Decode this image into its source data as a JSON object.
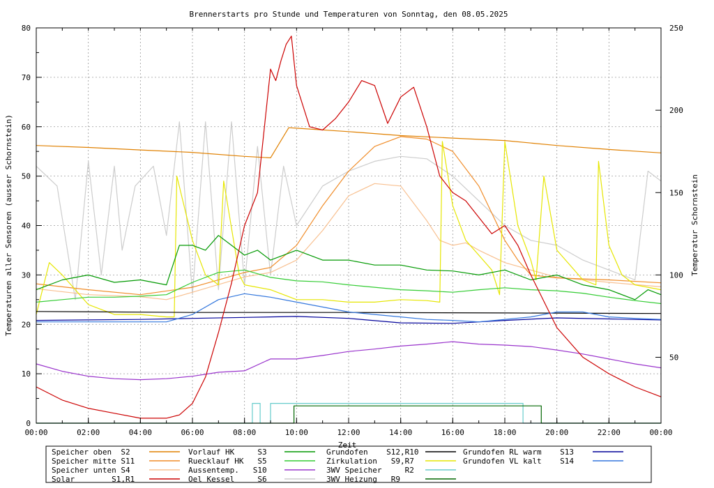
{
  "chart_data": {
    "type": "line",
    "title": "Brennerstarts pro Stunde und Temperaturen von Sonntag, den 08.05.2025",
    "xlabel": "Zeit",
    "ylabel": "Temperaturen aller Sensoren (ausser Schornstein)",
    "y2label": "Temperatur Schornstein",
    "y2label_color": "#ee44ee",
    "x_unit": "hours",
    "xlim": [
      0,
      24
    ],
    "ylim": [
      0,
      80
    ],
    "y2lim": [
      10,
      250
    ],
    "grid": true,
    "legend_position": "bottom",
    "x_ticks": [
      "00:00",
      "02:00",
      "04:00",
      "06:00",
      "08:00",
      "10:00",
      "12:00",
      "14:00",
      "16:00",
      "18:00",
      "20:00",
      "22:00",
      "00:00"
    ],
    "y_ticks": [
      "0",
      "10",
      "20",
      "30",
      "40",
      "50",
      "60",
      "70",
      "80"
    ],
    "y2_ticks": [
      "50",
      "100",
      "150",
      "200",
      "250"
    ],
    "series": [
      {
        "name": "Speicher oben  S2",
        "color": "#e08000",
        "axis": "y",
        "x": [
          0,
          2,
          4,
          6,
          8,
          9,
          9.7,
          10,
          12,
          14,
          16,
          18,
          20,
          22,
          24
        ],
        "values": [
          56.2,
          55.8,
          55.3,
          54.8,
          54.0,
          53.7,
          59.8,
          59.7,
          59.0,
          58.2,
          57.7,
          57.2,
          56.2,
          55.4,
          54.7
        ]
      },
      {
        "name": "Speicher mitte S11",
        "color": "#f08c28",
        "axis": "y",
        "x": [
          0,
          2,
          4,
          6,
          8,
          9,
          10,
          11,
          12,
          13,
          14,
          15,
          16,
          17,
          18,
          18.5,
          19,
          20,
          22,
          24
        ],
        "values": [
          28.2,
          27.0,
          26.0,
          27.5,
          30.5,
          31.5,
          36,
          44,
          51,
          56,
          58,
          57.5,
          55,
          48,
          37,
          33,
          30,
          29.4,
          29.0,
          28.4
        ]
      },
      {
        "name": "Speicher unten S4",
        "color": "#f8c090",
        "axis": "y",
        "x": [
          0,
          2,
          4,
          5,
          6,
          8,
          9,
          10,
          11,
          12,
          13,
          14,
          15,
          15.5,
          16,
          16.5,
          17,
          18,
          20,
          22,
          24
        ],
        "values": [
          27.2,
          26.0,
          25.6,
          25.0,
          26.5,
          29.6,
          30.5,
          33,
          39,
          46,
          48.5,
          48,
          41,
          37,
          36,
          36.5,
          35,
          32.5,
          29.5,
          28.5,
          27.6
        ]
      },
      {
        "name": "Solar        S1,R1",
        "color": "#cc0000",
        "axis": "y2",
        "x": [
          0,
          0.5,
          1,
          2,
          3,
          4,
          5,
          5.5,
          6,
          6.5,
          7,
          7.5,
          8,
          8.5,
          9,
          9.2,
          9.4,
          9.6,
          9.8,
          10,
          10.5,
          11,
          11.5,
          12,
          12.5,
          13,
          13.5,
          14,
          14.5,
          15,
          15.5,
          16,
          16.5,
          17,
          17.5,
          18,
          18.5,
          19,
          20,
          21,
          22,
          23,
          24
        ],
        "values": [
          32,
          28,
          24,
          19,
          16,
          13,
          13,
          15,
          22,
          38,
          65,
          95,
          130,
          150,
          225,
          218,
          230,
          240,
          245,
          215,
          190,
          188,
          195,
          205,
          218,
          215,
          192,
          208,
          214,
          190,
          160,
          150,
          145,
          135,
          125,
          130,
          118,
          100,
          68,
          50,
          40,
          32,
          26
        ]
      },
      {
        "name": "Vorlauf HK     S3",
        "color": "#009900",
        "axis": "y",
        "x": [
          0,
          1,
          2,
          3,
          4,
          5,
          5.5,
          6,
          6.5,
          7,
          7.5,
          8,
          8.5,
          9,
          10,
          11,
          12,
          13,
          14,
          15,
          16,
          17,
          18,
          19,
          20,
          21,
          22,
          23,
          23.5,
          24
        ],
        "values": [
          27,
          29,
          30,
          28.5,
          29,
          28,
          36,
          36,
          35,
          38,
          36,
          34,
          35,
          33,
          35,
          33,
          33,
          32,
          32,
          31,
          30.8,
          30,
          31,
          29,
          30,
          28,
          27,
          25,
          27,
          26
        ]
      },
      {
        "name": "Ruecklauf HK   S5",
        "color": "#33cc33",
        "axis": "y",
        "x": [
          0,
          1,
          2,
          3,
          4,
          5,
          6,
          7,
          8,
          9,
          10,
          11,
          12,
          13,
          14,
          15,
          16,
          17,
          18,
          19,
          20,
          21,
          22,
          23,
          24
        ],
        "values": [
          24.5,
          25,
          25.5,
          25.5,
          25.7,
          26.0,
          28.5,
          30.5,
          31,
          29.5,
          28.8,
          28.6,
          28.0,
          27.5,
          27,
          26.8,
          26.5,
          27,
          27.4,
          27,
          26.8,
          26.3,
          25.5,
          24.8,
          24.2
        ]
      },
      {
        "name": "Aussentemp.   S10",
        "color": "#9933cc",
        "axis": "y",
        "x": [
          0,
          1,
          2,
          3,
          4,
          5,
          6,
          7,
          8,
          9,
          10,
          11,
          12,
          13,
          14,
          15,
          16,
          17,
          18,
          19,
          20,
          21,
          22,
          23,
          24
        ],
        "values": [
          12,
          10.5,
          9.5,
          9.0,
          8.8,
          9.0,
          9.5,
          10.3,
          10.6,
          13,
          13,
          13.7,
          14.5,
          15,
          15.6,
          16,
          16.5,
          16,
          15.8,
          15.5,
          14.8,
          14,
          13,
          12,
          11.2
        ]
      },
      {
        "name": "Oel Kessel     S6",
        "color": "#cccccc",
        "axis": "y",
        "x": [
          0,
          0.8,
          1.5,
          2.0,
          2.5,
          3.0,
          3.3,
          3.8,
          4.5,
          5.0,
          5.5,
          6.0,
          6.5,
          7.0,
          7.5,
          8.0,
          8.5,
          9.0,
          9.5,
          10,
          11,
          12,
          13,
          14,
          15,
          16,
          17,
          18,
          19,
          20,
          21,
          22,
          23,
          23.5,
          24
        ],
        "values": [
          52,
          48,
          25,
          53,
          30,
          52,
          35,
          48,
          52,
          38,
          61,
          26,
          61,
          27,
          61,
          28,
          56,
          30,
          52,
          40,
          48,
          51,
          53,
          54,
          53.5,
          50,
          45,
          40,
          37,
          36,
          33,
          31,
          29,
          51,
          49
        ]
      },
      {
        "name": "Grundofen   S12,R10",
        "color": "#000000",
        "axis": "y",
        "x": [
          0,
          6,
          12,
          18,
          24
        ],
        "values": [
          22.6,
          22.4,
          22.4,
          22.3,
          22.2
        ]
      },
      {
        "name": "Zirkulation   S9,R7",
        "color": "#e6e600",
        "axis": "y",
        "x": [
          0,
          0.5,
          1.0,
          2.0,
          3.0,
          4.0,
          5.0,
          5.3,
          5.4,
          6.0,
          6.5,
          7.0,
          7.2,
          7.8,
          8.0,
          9.0,
          10,
          11,
          12,
          13,
          14,
          15,
          15.5,
          15.6,
          16,
          16.5,
          17,
          17.5,
          17.8,
          18.0,
          18.5,
          19.0,
          19.2,
          19.5,
          20,
          21,
          21.5,
          21.6,
          22,
          22.5,
          23,
          24
        ],
        "values": [
          22,
          32.5,
          30,
          24,
          22,
          22,
          21.5,
          21.5,
          50,
          37,
          30,
          28,
          49,
          30,
          28,
          27,
          25,
          25,
          24.5,
          24.5,
          25,
          24.8,
          24.5,
          57,
          44,
          37,
          34,
          31,
          26,
          57,
          40,
          33,
          29,
          50,
          35,
          29,
          28,
          53,
          36,
          30,
          28,
          27
        ]
      },
      {
        "name": "3WV Speicher     R2",
        "color": "#66cccc",
        "axis": "y",
        "x": [
          0,
          8.3,
          8.3,
          8.6,
          8.6,
          9.0,
          9.0,
          18.7,
          18.7,
          24
        ],
        "values": [
          0,
          0,
          4,
          4,
          0,
          0,
          4,
          4,
          0,
          0
        ]
      },
      {
        "name": "3WV Heizung   R9",
        "color": "#006600",
        "axis": "y",
        "x": [
          0,
          9.9,
          9.9,
          19.4,
          19.4,
          24
        ],
        "values": [
          0,
          0,
          3.5,
          3.5,
          0,
          0
        ]
      },
      {
        "name": "Grundofen RL warm",
        "label": "S13",
        "color": "#000099",
        "axis": "y",
        "x": [
          0,
          2,
          4,
          6,
          8,
          10,
          12,
          14,
          16,
          18,
          20,
          22,
          24
        ],
        "values": [
          20.8,
          20.9,
          21.0,
          21.2,
          21.4,
          21.6,
          21.2,
          20.3,
          20.2,
          20.8,
          21.3,
          21.1,
          20.9
        ]
      },
      {
        "name": "Grundofen VL kalt",
        "label": "S14",
        "color": "#3377dd",
        "axis": "y",
        "x": [
          0,
          5,
          6,
          7,
          8,
          9,
          10,
          11,
          12,
          13,
          14,
          15,
          16,
          17,
          18,
          19,
          20,
          21,
          22,
          23,
          24
        ],
        "values": [
          20.5,
          20.5,
          22,
          25,
          26.2,
          25.5,
          24.5,
          23.5,
          22.5,
          22,
          21.5,
          21,
          20.8,
          20.5,
          21,
          21.5,
          22.5,
          22.5,
          21.5,
          21.2,
          21
        ]
      }
    ],
    "legend": [
      {
        "c": 0,
        "r": 0,
        "text": "Speicher oben  S2",
        "color": "#e08000"
      },
      {
        "c": 0,
        "r": 1,
        "text": "Speicher mitte S11",
        "color": "#f08c28"
      },
      {
        "c": 0,
        "r": 2,
        "text": "Speicher unten S4",
        "color": "#f8c090"
      },
      {
        "c": 0,
        "r": 3,
        "text": "Solar        S1,R1",
        "color": "#cc0000"
      },
      {
        "c": 1,
        "r": 0,
        "text": "Vorlauf HK     S3",
        "color": "#009900"
      },
      {
        "c": 1,
        "r": 1,
        "text": "Ruecklauf HK   S5",
        "color": "#33cc33"
      },
      {
        "c": 1,
        "r": 2,
        "text": "Aussentemp.   S10",
        "color": "#9933cc"
      },
      {
        "c": 1,
        "r": 3,
        "text": "Oel Kessel     S6",
        "color": "#cccccc"
      },
      {
        "c": 2,
        "r": 0,
        "text": "Grundofen    S12,R10",
        "color": "#000000"
      },
      {
        "c": 2,
        "r": 1,
        "text": "Zirkulation   S9,R7",
        "color": "#e6e600"
      },
      {
        "c": 2,
        "r": 2,
        "text": "3WV Speicher     R2",
        "color": "#66cccc"
      },
      {
        "c": 2,
        "r": 3,
        "text": "3WV Heizung   R9",
        "color": "#006600"
      },
      {
        "c": 3,
        "r": 0,
        "text": "Grundofen RL warm    S13",
        "color": "#000099"
      },
      {
        "c": 3,
        "r": 1,
        "text": "Grundofen VL kalt    S14",
        "color": "#3377dd"
      }
    ]
  }
}
